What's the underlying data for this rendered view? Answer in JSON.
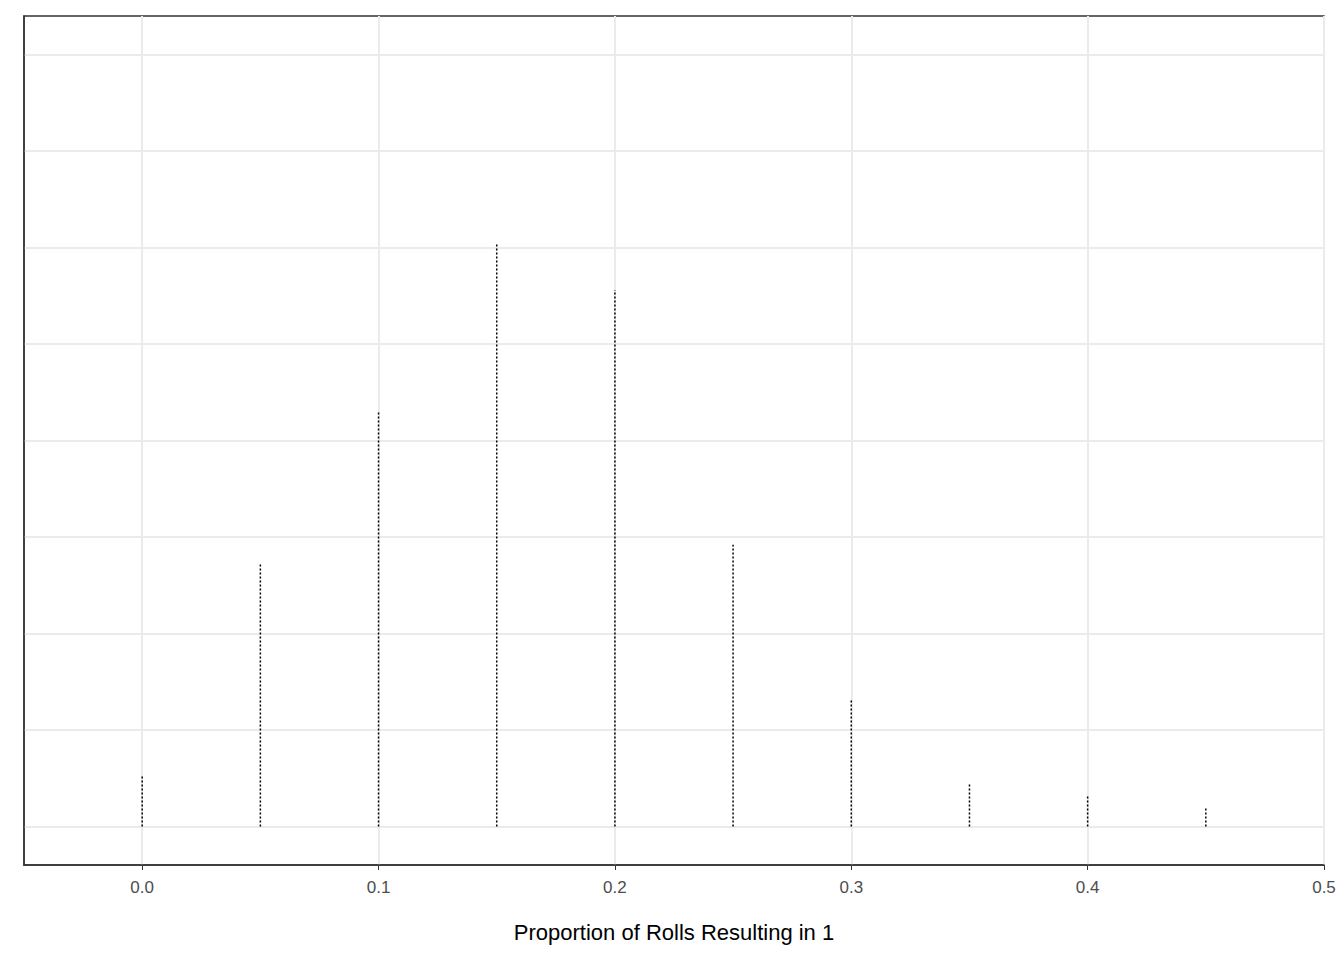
{
  "chart_data": {
    "type": "bar",
    "x_label": "Proportion of Rolls Resulting in 1",
    "x": [
      0,
      0.05,
      0.1,
      0.15,
      0.2,
      0.25,
      0.3,
      0.35,
      0.4,
      0.45
    ],
    "values": [
      13,
      68,
      107.5,
      151,
      139,
      73,
      33,
      11,
      8,
      5
    ],
    "color": "#000000",
    "line_style": "dotted",
    "xlim": [
      -0.05,
      0.5
    ],
    "xticks": [
      {
        "value": 0,
        "label": "0.0"
      },
      0.1,
      0.2,
      0.3,
      0.4,
      0.5
    ],
    "ylim": [
      -10,
      210
    ],
    "yticks": [
      0,
      25,
      50,
      75,
      100,
      125,
      150,
      175,
      200
    ],
    "grid": true,
    "tick_labels": "x"
  }
}
